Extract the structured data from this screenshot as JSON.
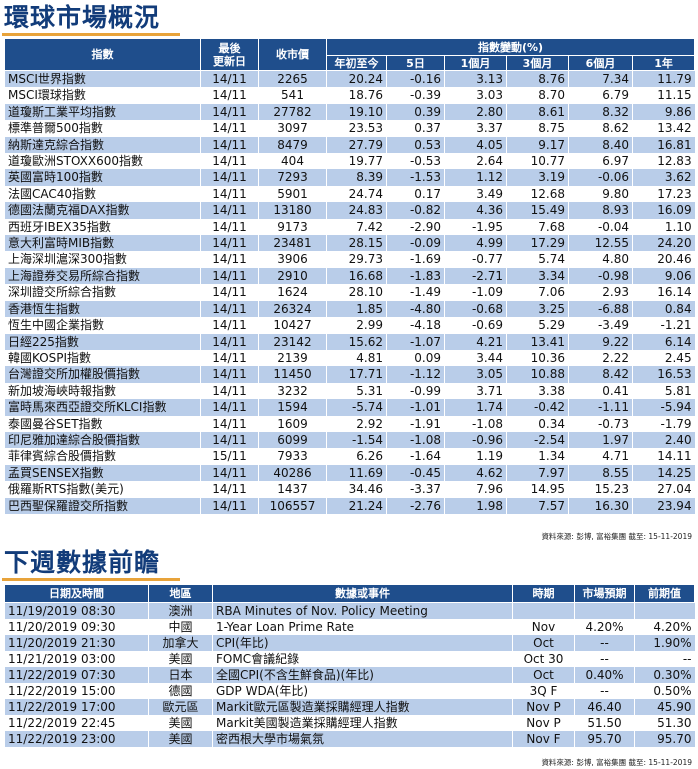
{
  "market": {
    "title": "環球市場概況",
    "headers": {
      "index": "指數",
      "latest": "最後\n更新日",
      "close": "收市價",
      "change_group": "指數變動(%)",
      "ytd": "年初至今",
      "d5": "5日",
      "m1": "1個月",
      "m3": "3個月",
      "m6": "6個月",
      "y1": "1年"
    },
    "rows": [
      [
        "MSCI世界指數",
        "14/11",
        "2265",
        "20.24",
        "-0.16",
        "3.13",
        "8.76",
        "7.34",
        "11.79"
      ],
      [
        "MSCI環球指數",
        "14/11",
        "541",
        "18.76",
        "-0.39",
        "3.03",
        "8.70",
        "6.79",
        "11.15"
      ],
      [
        "道瓊斯工業平均指數",
        "14/11",
        "27782",
        "19.10",
        "0.39",
        "2.80",
        "8.61",
        "8.32",
        "9.86"
      ],
      [
        "標準普爾500指數",
        "14/11",
        "3097",
        "23.53",
        "0.37",
        "3.37",
        "8.75",
        "8.62",
        "13.42"
      ],
      [
        "納斯達克綜合指數",
        "14/11",
        "8479",
        "27.79",
        "0.53",
        "4.05",
        "9.17",
        "8.40",
        "16.81"
      ],
      [
        "道瓊歐洲STOXX600指數",
        "14/11",
        "404",
        "19.77",
        "-0.53",
        "2.64",
        "10.77",
        "6.97",
        "12.83"
      ],
      [
        "英國富時100指數",
        "14/11",
        "7293",
        "8.39",
        "-1.53",
        "1.12",
        "3.19",
        "-0.06",
        "3.62"
      ],
      [
        "法國CAC40指數",
        "14/11",
        "5901",
        "24.74",
        "0.17",
        "3.49",
        "12.68",
        "9.80",
        "17.23"
      ],
      [
        "德國法蘭克福DAX指數",
        "14/11",
        "13180",
        "24.83",
        "-0.82",
        "4.36",
        "15.49",
        "8.93",
        "16.09"
      ],
      [
        "西班牙IBEX35指數",
        "14/11",
        "9173",
        "7.42",
        "-2.90",
        "-1.95",
        "7.68",
        "-0.04",
        "1.10"
      ],
      [
        "意大利富時MIB指數",
        "14/11",
        "23481",
        "28.15",
        "-0.09",
        "4.99",
        "17.29",
        "12.55",
        "24.20"
      ],
      [
        "上海深圳滬深300指數",
        "14/11",
        "3906",
        "29.73",
        "-1.69",
        "-0.77",
        "5.74",
        "4.80",
        "20.46"
      ],
      [
        "上海證券交易所綜合指數",
        "14/11",
        "2910",
        "16.68",
        "-1.83",
        "-2.71",
        "3.34",
        "-0.98",
        "9.06"
      ],
      [
        "深圳證交所綜合指數",
        "14/11",
        "1624",
        "28.10",
        "-1.49",
        "-1.09",
        "7.06",
        "2.93",
        "16.14"
      ],
      [
        "香港恆生指數",
        "14/11",
        "26324",
        "1.85",
        "-4.80",
        "-0.68",
        "3.25",
        "-6.88",
        "0.84"
      ],
      [
        "恆生中國企業指數",
        "14/11",
        "10427",
        "2.99",
        "-4.18",
        "-0.69",
        "5.29",
        "-3.49",
        "-1.21"
      ],
      [
        "日經225指數",
        "14/11",
        "23142",
        "15.62",
        "-1.07",
        "4.21",
        "13.41",
        "9.22",
        "6.14"
      ],
      [
        "韓國KOSPI指數",
        "14/11",
        "2139",
        "4.81",
        "0.09",
        "3.44",
        "10.36",
        "2.22",
        "2.45"
      ],
      [
        "台灣證交所加權股價指數",
        "14/11",
        "11450",
        "17.71",
        "-1.12",
        "3.05",
        "10.88",
        "8.42",
        "16.53"
      ],
      [
        "新加坡海峽時報指數",
        "14/11",
        "3232",
        "5.31",
        "-0.99",
        "3.71",
        "3.38",
        "0.41",
        "5.81"
      ],
      [
        "富時馬來西亞證交所KLCI指數",
        "14/11",
        "1594",
        "-5.74",
        "-1.01",
        "1.74",
        "-0.42",
        "-1.11",
        "-5.94"
      ],
      [
        "泰國曼谷SET指數",
        "14/11",
        "1609",
        "2.92",
        "-1.91",
        "-1.08",
        "0.34",
        "-0.73",
        "-1.79"
      ],
      [
        "印尼雅加達綜合股價指數",
        "14/11",
        "6099",
        "-1.54",
        "-1.08",
        "-0.96",
        "-2.54",
        "1.97",
        "2.40"
      ],
      [
        "菲律賓綜合股價指數",
        "15/11",
        "7933",
        "6.26",
        "-1.64",
        "1.19",
        "1.34",
        "4.71",
        "14.11"
      ],
      [
        "孟買SENSEX指數",
        "14/11",
        "40286",
        "11.69",
        "-0.45",
        "4.62",
        "7.97",
        "8.55",
        "14.25"
      ],
      [
        "俄羅斯RTS指數(美元)",
        "14/11",
        "1437",
        "34.46",
        "-3.37",
        "7.96",
        "14.95",
        "15.23",
        "27.04"
      ],
      [
        "巴西聖保羅證交所指數",
        "14/11",
        "106557",
        "21.24",
        "-2.76",
        "1.98",
        "7.57",
        "16.30",
        "23.94"
      ]
    ],
    "source": "資料來源: 彭博, 富裕集團 截至: 15-11-2019"
  },
  "events": {
    "title": "下週數據前瞻",
    "headers": {
      "datetime": "日期及時間",
      "region": "地區",
      "event": "數據或事件",
      "period": "時期",
      "forecast": "市場預期",
      "previous": "前期值"
    },
    "rows": [
      [
        "11/19/2019 08:30",
        "澳洲",
        "RBA Minutes of Nov. Policy Meeting",
        "",
        "",
        ""
      ],
      [
        "11/20/2019 09:30",
        "中國",
        "1-Year Loan Prime Rate",
        "Nov",
        "4.20%",
        "4.20%"
      ],
      [
        "11/20/2019 21:30",
        "加拿大",
        "CPI(年比)",
        "Oct",
        "--",
        "1.90%"
      ],
      [
        "11/21/2019 03:00",
        "美國",
        "FOMC會議紀錄",
        "Oct 30",
        "--",
        "--"
      ],
      [
        "11/22/2019 07:30",
        "日本",
        "全國CPI(不含生鮮食品)(年比)",
        "Oct",
        "0.40%",
        "0.30%"
      ],
      [
        "11/22/2019 15:00",
        "德國",
        "GDP WDA(年比)",
        "3Q F",
        "--",
        "0.50%"
      ],
      [
        "11/22/2019 17:00",
        "歐元區",
        "Markit歐元區製造業採購經理人指數",
        "Nov P",
        "46.40",
        "45.90"
      ],
      [
        "11/22/2019 22:45",
        "美國",
        "Markit美國製造業採購經理人指數",
        "Nov P",
        "51.50",
        "51.30"
      ],
      [
        "11/22/2019 23:00",
        "美國",
        "密西根大學市場氣氛",
        "Nov F",
        "95.70",
        "95.70"
      ]
    ],
    "source": "資料來源: 彭博, 富裕集團 截至: 15-11-2019"
  },
  "colors": {
    "header_bg": "#1f4e8c",
    "alt_row": "#b9cde9",
    "title": "#123c7a",
    "rule": "#e8a33a"
  }
}
